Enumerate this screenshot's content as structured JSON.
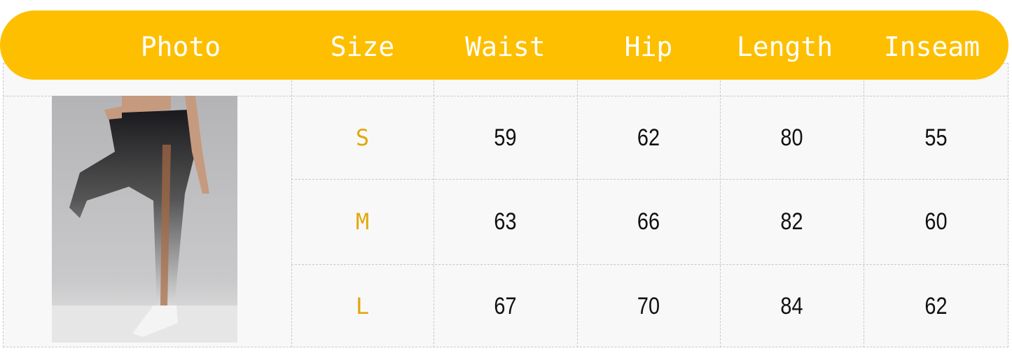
{
  "headers": [
    "Photo",
    "Size",
    "Waist",
    "Hip",
    "Length",
    "Inseam"
  ],
  "rows": [
    {
      "size": "S",
      "waist": "59",
      "hip": "62",
      "length": "80",
      "inseam": "55"
    },
    {
      "size": "M",
      "waist": "63",
      "hip": "66",
      "length": "82",
      "inseam": "60"
    },
    {
      "size": "L",
      "waist": "67",
      "hip": "70",
      "length": "84",
      "inseam": "62"
    }
  ],
  "colors": {
    "header": "#fdbf00",
    "size_text": "#e2a70a"
  }
}
